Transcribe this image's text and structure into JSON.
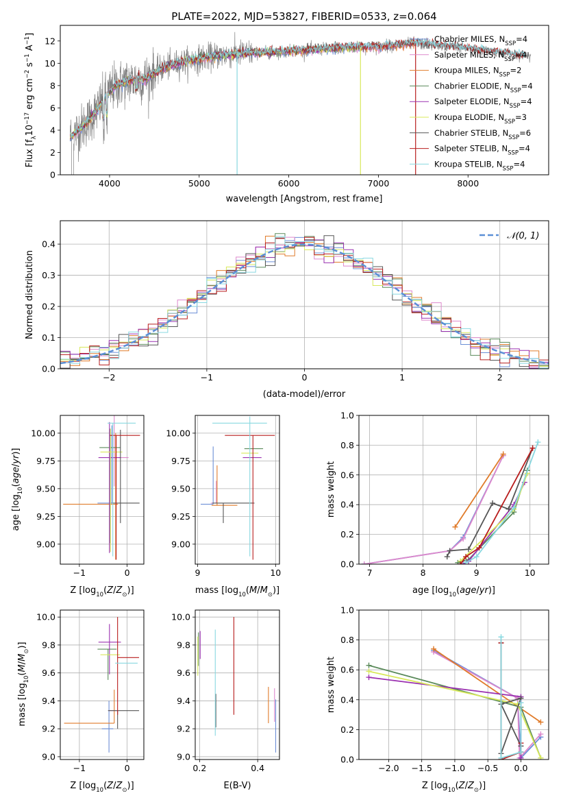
{
  "figure_title": "PLATE=2022, MJD=53827, FIBERID=0533, z=0.064",
  "colors": {
    "Chabrier MILES": "#6b8ed6",
    "Salpeter MILES": "#dd88cc",
    "Kroupa MILES": "#e07b2a",
    "Chabrier ELODIE": "#5a8a5a",
    "Salpeter ELODIE": "#9a30b0",
    "Kroupa ELODIE": "#d8e85a",
    "Chabrier STELIB": "#555555",
    "Salpeter STELIB": "#b81c1c",
    "Kroupa STELIB": "#88d8e0",
    "data": "#808080",
    "gaussian": "#5b8fd6",
    "grid": "#b0b0b0"
  },
  "chart_data": [
    {
      "id": "spectrum",
      "type": "line",
      "title": "PLATE=2022, MJD=53827, FIBERID=0533, z=0.064",
      "xlabel": "wavelength [Angstrom, rest frame]",
      "ylabel": "Flux [f_λ10^-17 erg cm^-2 s^-1 A^-1]",
      "xlim": [
        3450,
        8900
      ],
      "ylim": [
        0,
        13.4
      ],
      "xticks": [
        4000,
        5000,
        6000,
        7000,
        8000
      ],
      "yticks": [
        0,
        2,
        4,
        6,
        8,
        10,
        12
      ],
      "grid": false,
      "legend_position": "lower-right",
      "legend": [
        {
          "label": "Chabrier MILES, N",
          "sub": "SSP",
          "eq": "=4"
        },
        {
          "label": "Salpeter MILES, N",
          "sub": "SSP",
          "eq": "=4"
        },
        {
          "label": "Kroupa MILES, N",
          "sub": "SSP",
          "eq": "=2"
        },
        {
          "label": "Chabrier ELODIE, N",
          "sub": "SSP",
          "eq": "=4"
        },
        {
          "label": "Salpeter ELODIE, N",
          "sub": "SSP",
          "eq": "=4"
        },
        {
          "label": "Kroupa ELODIE, N",
          "sub": "SSP",
          "eq": "=3"
        },
        {
          "label": "Chabrier STELIB, N",
          "sub": "SSP",
          "eq": "=6"
        },
        {
          "label": "Salpeter STELIB, N",
          "sub": "SSP",
          "eq": "=4"
        },
        {
          "label": "Kroupa STELIB, N",
          "sub": "SSP",
          "eq": "=4"
        }
      ],
      "continuum_knots": [
        [
          3560,
          3.4
        ],
        [
          3700,
          4.3
        ],
        [
          3850,
          5.7
        ],
        [
          3950,
          6.9
        ],
        [
          4050,
          7.9
        ],
        [
          4200,
          8.4
        ],
        [
          4400,
          8.6
        ],
        [
          4600,
          9.6
        ],
        [
          4800,
          10.1
        ],
        [
          5000,
          10.4
        ],
        [
          5200,
          10.7
        ],
        [
          5500,
          10.9
        ],
        [
          5800,
          11.0
        ],
        [
          6200,
          11.2
        ],
        [
          6600,
          11.4
        ],
        [
          7000,
          11.5
        ],
        [
          7400,
          11.8
        ],
        [
          7700,
          11.6
        ],
        [
          8000,
          11.3
        ],
        [
          8300,
          11.0
        ],
        [
          8700,
          10.6
        ]
      ],
      "model_segments": {
        "MILES": [
          3560,
          7400
        ],
        "ELODIE": [
          3560,
          6800
        ],
        "STELIB": [
          3560,
          8650
        ]
      }
    },
    {
      "id": "residuals",
      "type": "histogram",
      "xlabel": "(data-model)/error",
      "ylabel": "Normed distribution",
      "xlim": [
        -2.5,
        2.5
      ],
      "ylim": [
        0,
        0.475
      ],
      "xticks": [
        -2,
        -1,
        0,
        1,
        2
      ],
      "yticks": [
        0.0,
        0.1,
        0.2,
        0.3,
        0.4
      ],
      "grid": true,
      "bin_width": 0.1,
      "legend_position": "top-right",
      "legend": [
        {
          "label": "𝒩(0, 1)"
        }
      ],
      "gaussian": {
        "mean": 0,
        "sigma": 1
      }
    },
    {
      "id": "age-vs-Z",
      "type": "errorbar",
      "xlabel": "Z [log10(Z/Z⊙)]",
      "ylabel": "age  [log10(age/yr)]",
      "xlim": [
        -1.4,
        0.35
      ],
      "ylim": [
        8.82,
        10.16
      ],
      "xticks": [
        -1,
        0
      ],
      "yticks": [
        9.0,
        9.25,
        9.5,
        9.75,
        10.0
      ],
      "grid": true,
      "points": [
        {
          "series": "Chabrier MILES",
          "x": -0.32,
          "xerr": [
            0.3,
            0.04
          ],
          "y": 9.37,
          "yerr": [
            0.0,
            0.7
          ]
        },
        {
          "series": "Salpeter MILES",
          "x": -0.27,
          "xerr": [
            0.06,
            0.3
          ],
          "y": 9.78,
          "yerr": [
            0.26,
            0.88
          ]
        },
        {
          "series": "Kroupa MILES",
          "x": -0.24,
          "xerr": [
            1.1,
            0.05
          ],
          "y": 9.36,
          "yerr": [
            0.5,
            0.64
          ]
        },
        {
          "series": "Chabrier ELODIE",
          "x": -0.36,
          "xerr": [
            0.22,
            0.22
          ],
          "y": 9.87,
          "yerr": [
            0.86,
            0.17
          ]
        },
        {
          "series": "Salpeter ELODIE",
          "x": -0.37,
          "xerr": [
            0.23,
            0.24
          ],
          "y": 9.78,
          "yerr": [
            0.86,
            0.32
          ]
        },
        {
          "series": "Kroupa ELODIE",
          "x": -0.35,
          "xerr": [
            0.21,
            0.25
          ],
          "y": 9.83,
          "yerr": [
            0.9,
            0.21
          ]
        },
        {
          "series": "Chabrier STELIB",
          "x": -0.14,
          "xerr": [
            0.18,
            0.4
          ],
          "y": 9.37,
          "yerr": [
            0.18,
            0.66
          ]
        },
        {
          "series": "Salpeter STELIB",
          "x": -0.23,
          "xerr": [
            0.13,
            0.5
          ],
          "y": 9.98,
          "yerr": [
            1.12,
            0.0
          ]
        },
        {
          "series": "Kroupa STELIB",
          "x": -0.3,
          "xerr": [
            0.11,
            0.48
          ],
          "y": 10.09,
          "yerr": [
            1.2,
            0.0
          ]
        }
      ]
    },
    {
      "id": "age-vs-mass",
      "type": "errorbar",
      "xlabel": "mass [log10(M/M⊙)]",
      "ylabel": "",
      "xlim": [
        8.97,
        10.05
      ],
      "ylim": [
        8.82,
        10.16
      ],
      "xticks": [
        9,
        10
      ],
      "yticks": [
        9.0,
        9.25,
        9.5,
        9.75,
        10.0
      ],
      "grid": true,
      "points": [
        {
          "series": "Chabrier MILES",
          "x": 9.2,
          "xerr": [
            0.16,
            0.0
          ],
          "y": 9.36,
          "yerr": [
            0.0,
            0.52
          ]
        },
        {
          "series": "Salpeter MILES",
          "x": 9.24,
          "xerr": [
            0.07,
            0.0
          ],
          "y": 9.37,
          "yerr": [
            0.0,
            0.2
          ]
        },
        {
          "series": "Kroupa MILES",
          "x": 9.25,
          "xerr": [
            0.07,
            0.26
          ],
          "y": 9.35,
          "yerr": [
            0.0,
            0.36
          ]
        },
        {
          "series": "Chabrier ELODIE",
          "x": 9.7,
          "xerr": [
            0.1,
            0.14
          ],
          "y": 9.86,
          "yerr": [
            0.0,
            0.0
          ]
        },
        {
          "series": "Salpeter ELODIE",
          "x": 9.72,
          "xerr": [
            0.14,
            0.1
          ],
          "y": 9.78,
          "yerr": [
            0.0,
            0.0
          ]
        },
        {
          "series": "Kroupa ELODIE",
          "x": 9.68,
          "xerr": [
            0.12,
            0.1
          ],
          "y": 9.82,
          "yerr": [
            0.0,
            0.0
          ]
        },
        {
          "series": "Chabrier STELIB",
          "x": 9.33,
          "xerr": [
            0.14,
            0.4
          ],
          "y": 9.37,
          "yerr": [
            0.18,
            0.0
          ]
        },
        {
          "series": "Salpeter STELIB",
          "x": 9.71,
          "xerr": [
            0.36,
            0.28
          ],
          "y": 9.98,
          "yerr": [
            1.12,
            0.0
          ]
        },
        {
          "series": "Kroupa STELIB",
          "x": 9.67,
          "xerr": [
            0.48,
            0.22
          ],
          "y": 10.09,
          "yerr": [
            1.2,
            0.06
          ]
        }
      ]
    },
    {
      "id": "weight-vs-age",
      "type": "line",
      "xlabel": "age  [log10(age/yr)]",
      "ylabel": "mass weight",
      "xlim": [
        6.8,
        10.35
      ],
      "ylim": [
        0.0,
        1.0
      ],
      "xticks": [
        7,
        8,
        9,
        10
      ],
      "yticks": [
        0.0,
        0.2,
        0.4,
        0.6,
        0.8,
        1.0
      ],
      "grid": true,
      "series": [
        {
          "name": "Chabrier MILES",
          "x": [
            6.9,
            8.5,
            8.75,
            9.5
          ],
          "y": [
            0.0,
            0.09,
            0.18,
            0.73
          ]
        },
        {
          "name": "Salpeter MILES",
          "x": [
            6.9,
            8.5,
            8.75,
            9.5
          ],
          "y": [
            0.0,
            0.09,
            0.17,
            0.73
          ]
        },
        {
          "name": "Kroupa MILES",
          "x": [
            8.6,
            9.5
          ],
          "y": [
            0.25,
            0.74
          ]
        },
        {
          "name": "Chabrier ELODIE",
          "x": [
            8.65,
            8.85,
            9.7,
            9.95
          ],
          "y": [
            0.01,
            0.03,
            0.35,
            0.63
          ]
        },
        {
          "name": "Salpeter ELODIE",
          "x": [
            8.75,
            8.85,
            9.7,
            9.9
          ],
          "y": [
            0.0,
            0.02,
            0.4,
            0.55
          ]
        },
        {
          "name": "Kroupa ELODIE",
          "x": [
            8.7,
            9.7,
            9.95
          ],
          "y": [
            0.02,
            0.37,
            0.61
          ]
        },
        {
          "name": "Chabrier STELIB",
          "x": [
            8.45,
            8.5,
            8.85,
            9.3,
            9.6,
            10.05
          ],
          "y": [
            0.05,
            0.09,
            0.1,
            0.41,
            0.37,
            0.78
          ]
        },
        {
          "name": "Salpeter STELIB",
          "x": [
            8.7,
            8.8,
            9.05,
            10.05
          ],
          "y": [
            0.0,
            0.05,
            0.11,
            0.78
          ]
        },
        {
          "name": "Kroupa STELIB",
          "x": [
            8.8,
            9.0,
            9.7,
            10.15
          ],
          "y": [
            0.01,
            0.05,
            0.38,
            0.82
          ]
        }
      ]
    },
    {
      "id": "mass-vs-Z",
      "type": "errorbar",
      "xlabel": "Z [log10(Z/Z⊙)]",
      "ylabel": "mass [log10(M/M⊙)]",
      "xlim": [
        -1.4,
        0.35
      ],
      "ylim": [
        8.98,
        10.05
      ],
      "xticks": [
        -1,
        0
      ],
      "yticks": [
        9.0,
        9.2,
        9.4,
        9.6,
        9.8,
        10.0
      ],
      "grid": true,
      "points": [
        {
          "series": "Chabrier MILES",
          "x": -0.38,
          "xerr": [
            0.15,
            0.09
          ],
          "y": 9.2,
          "yerr": [
            0.17,
            0.2
          ]
        },
        {
          "series": "Salpeter MILES",
          "x": -0.33,
          "xerr": [
            0.06,
            0.12
          ],
          "y": 9.33,
          "yerr": [
            0.0,
            0.0
          ]
        },
        {
          "series": "Kroupa MILES",
          "x": -0.27,
          "xerr": [
            1.05,
            0.0
          ],
          "y": 9.24,
          "yerr": [
            0.0,
            0.24
          ]
        },
        {
          "series": "Chabrier ELODIE",
          "x": -0.4,
          "xerr": [
            0.22,
            0.18
          ],
          "y": 9.77,
          "yerr": [
            0.22,
            0.0
          ]
        },
        {
          "series": "Salpeter ELODIE",
          "x": -0.37,
          "xerr": [
            0.23,
            0.24
          ],
          "y": 9.82,
          "yerr": [
            0.23,
            0.13
          ]
        },
        {
          "series": "Kroupa ELODIE",
          "x": -0.35,
          "xerr": [
            0.21,
            0.2
          ],
          "y": 9.73,
          "yerr": [
            0.0,
            0.0
          ]
        },
        {
          "series": "Chabrier STELIB",
          "x": -0.2,
          "xerr": [
            0.2,
            0.45
          ],
          "y": 9.33,
          "yerr": [
            0.13,
            0.0
          ]
        },
        {
          "series": "Salpeter STELIB",
          "x": -0.2,
          "xerr": [
            0.0,
            0.45
          ],
          "y": 9.71,
          "yerr": [
            0.41,
            0.29
          ]
        },
        {
          "series": "Kroupa STELIB",
          "x": -0.25,
          "xerr": [
            0.0,
            0.47
          ],
          "y": 9.67,
          "yerr": [
            0.0,
            0.0
          ]
        }
      ]
    },
    {
      "id": "mass-vs-ebv",
      "type": "errorbar",
      "xlabel": "E(B-V)",
      "ylabel": "",
      "xlim": [
        0.185,
        0.475
      ],
      "ylim": [
        8.98,
        10.05
      ],
      "xticks": [
        0.2,
        0.4
      ],
      "yticks": [
        9.0,
        9.2,
        9.4,
        9.6,
        9.8,
        10.0
      ],
      "grid": true,
      "points": [
        {
          "series": "Chabrier MILES",
          "x": 0.462,
          "y": 9.22,
          "yerr": [
            0.19,
            0.19
          ]
        },
        {
          "series": "Salpeter MILES",
          "x": 0.458,
          "y": 9.37,
          "yerr": [
            0.12,
            0.12
          ]
        },
        {
          "series": "Kroupa MILES",
          "x": 0.437,
          "y": 9.37,
          "yerr": [
            0.13,
            0.13
          ]
        },
        {
          "series": "Chabrier ELODIE",
          "x": 0.196,
          "y": 9.77,
          "yerr": [
            0.12,
            0.12
          ]
        },
        {
          "series": "Salpeter ELODIE",
          "x": 0.202,
          "y": 9.8,
          "yerr": [
            0.1,
            0.1
          ]
        },
        {
          "series": "Kroupa ELODIE",
          "x": 0.194,
          "y": 9.72,
          "yerr": [
            0.14,
            0.14
          ]
        },
        {
          "series": "Chabrier STELIB",
          "x": 0.256,
          "y": 9.33,
          "yerr": [
            0.12,
            0.12
          ]
        },
        {
          "series": "Salpeter STELIB",
          "x": 0.318,
          "y": 9.65,
          "yerr": [
            0.35,
            0.35
          ]
        },
        {
          "series": "Kroupa STELIB",
          "x": 0.254,
          "y": 9.53,
          "yerr": [
            0.38,
            0.38
          ]
        }
      ]
    },
    {
      "id": "weight-vs-Z",
      "type": "line",
      "xlabel": "Z [log10(Z/Z⊙)]",
      "ylabel": "mass weight",
      "xlim": [
        -2.45,
        0.42
      ],
      "ylim": [
        0.0,
        1.0
      ],
      "xticks": [
        -2.0,
        -1.5,
        -1.0,
        -0.5,
        0.0
      ],
      "yticks": [
        0.0,
        0.2,
        0.4,
        0.6,
        0.8,
        1.0
      ],
      "grid": true,
      "series": [
        {
          "name": "Chabrier MILES",
          "x": [
            -1.32,
            -0.05,
            0.0,
            0.3
          ],
          "y": [
            0.73,
            0.41,
            0.01,
            0.15
          ]
        },
        {
          "name": "Salpeter MILES",
          "x": [
            -1.32,
            -0.05,
            -0.02,
            0.3
          ],
          "y": [
            0.72,
            0.41,
            0.01,
            0.17
          ]
        },
        {
          "name": "Kroupa MILES",
          "x": [
            -1.32,
            0.3
          ],
          "y": [
            0.74,
            0.25
          ]
        },
        {
          "name": "Chabrier ELODIE",
          "x": [
            -2.3,
            0.0,
            0.3
          ],
          "y": [
            0.63,
            0.35,
            0.01
          ]
        },
        {
          "name": "Salpeter ELODIE",
          "x": [
            -2.3,
            0.0,
            0.0
          ],
          "y": [
            0.55,
            0.42,
            0.01
          ]
        },
        {
          "name": "Kroupa ELODIE",
          "x": [
            -2.3,
            -0.05,
            0.3
          ],
          "y": [
            0.59,
            0.37,
            0.01
          ]
        },
        {
          "name": "Chabrier STELIB",
          "x": [
            -0.3,
            -0.3,
            0.0,
            -0.3,
            0.0,
            0.0
          ],
          "y": [
            0.78,
            0.04,
            0.41,
            0.37,
            0.09,
            0.05
          ]
        },
        {
          "name": "Salpeter STELIB",
          "x": [
            -0.3,
            -0.3,
            0.0,
            0.0
          ],
          "y": [
            0.78,
            0.0,
            0.05,
            0.11
          ]
        },
        {
          "name": "Kroupa STELIB",
          "x": [
            -0.3,
            -0.3,
            0.0,
            0.0
          ],
          "y": [
            0.82,
            0.01,
            0.05,
            0.38
          ]
        }
      ]
    }
  ]
}
